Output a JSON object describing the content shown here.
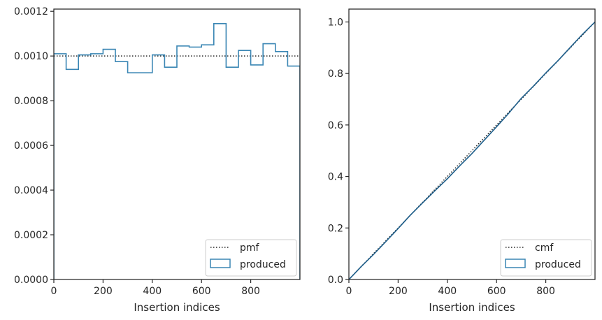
{
  "chart_data": [
    {
      "type": "histogram",
      "xlabel": "Insertion indices",
      "ylabel": "",
      "xlim": [
        0,
        1000
      ],
      "ylim": [
        0,
        0.00121
      ],
      "xticks": [
        0,
        200,
        400,
        600,
        800
      ],
      "yticks": [
        0.0,
        0.0002,
        0.0004,
        0.0006,
        0.0008,
        0.001,
        0.0012
      ],
      "ytick_labels": [
        "0.0000",
        "0.0002",
        "0.0004",
        "0.0006",
        "0.0008",
        "0.0010",
        "0.0012"
      ],
      "legend_position": "lower-right",
      "legend": [
        "pmf",
        "produced"
      ],
      "series": [
        {
          "name": "pmf",
          "style": "dotted",
          "color": "#222222",
          "x": [
            0,
            1000
          ],
          "y": [
            0.001,
            0.001
          ]
        },
        {
          "name": "produced",
          "style": "step",
          "color": "#3a86b4",
          "bin_edges": [
            0,
            50,
            100,
            150,
            200,
            250,
            300,
            350,
            400,
            450,
            500,
            550,
            600,
            650,
            700,
            750,
            800,
            850,
            900,
            950,
            1000
          ],
          "values": [
            0.00101,
            0.00094,
            0.001005,
            0.00101,
            0.00103,
            0.000975,
            0.000925,
            0.000925,
            0.001005,
            0.00095,
            0.001045,
            0.00104,
            0.00105,
            0.001145,
            0.00095,
            0.001025,
            0.00096,
            0.001055,
            0.00102,
            0.000955
          ]
        }
      ]
    },
    {
      "type": "line",
      "xlabel": "Insertion indices",
      "ylabel": "",
      "xlim": [
        0,
        1000
      ],
      "ylim": [
        0,
        1.05
      ],
      "xticks": [
        0,
        200,
        400,
        600,
        800
      ],
      "yticks": [
        0.0,
        0.2,
        0.4,
        0.6,
        0.8,
        1.0
      ],
      "ytick_labels": [
        "0.0",
        "0.2",
        "0.4",
        "0.6",
        "0.8",
        "1.0"
      ],
      "legend_position": "lower-right",
      "legend": [
        "cmf",
        "produced"
      ],
      "series": [
        {
          "name": "cmf",
          "style": "dotted",
          "color": "#222222",
          "x": [
            0,
            1000
          ],
          "y": [
            0,
            1
          ]
        },
        {
          "name": "produced",
          "style": "step",
          "color": "#1f5f8b",
          "x": [
            0,
            50,
            100,
            150,
            200,
            250,
            300,
            350,
            400,
            450,
            500,
            550,
            600,
            650,
            700,
            750,
            800,
            850,
            900,
            950,
            1000
          ],
          "y": [
            0,
            0.05,
            0.097,
            0.147,
            0.198,
            0.25,
            0.298,
            0.345,
            0.391,
            0.441,
            0.489,
            0.541,
            0.593,
            0.646,
            0.703,
            0.751,
            0.802,
            0.85,
            0.902,
            0.953,
            1.0
          ]
        }
      ]
    }
  ]
}
